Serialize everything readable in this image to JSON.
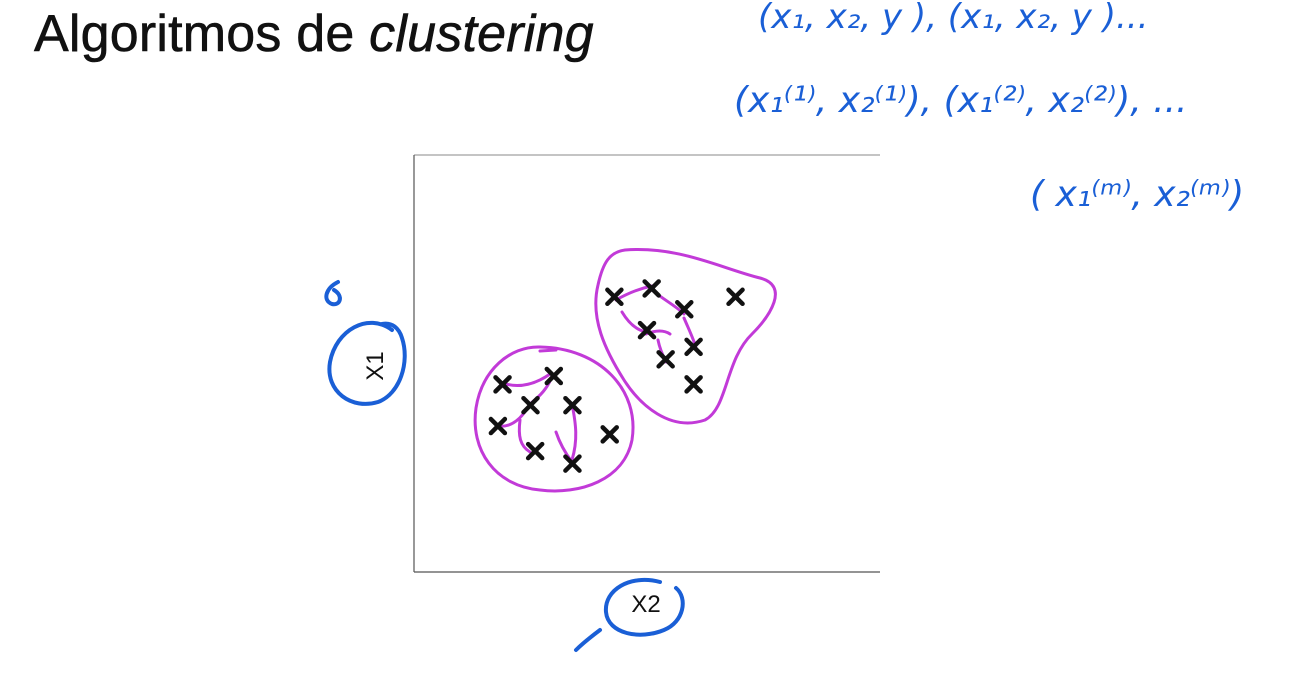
{
  "slide": {
    "title_main": "Algoritmos de ",
    "title_italic": "clustering"
  },
  "colors": {
    "ink_blue": "#1a5fd6",
    "ink_magenta": "#c23ad8",
    "marker": "#111111"
  },
  "annotations": {
    "line1": "(x₁, x₂, y ), (x₁, x₂, y )...",
    "line2": "(x₁⁽¹⁾, x₂⁽¹⁾), (x₁⁽²⁾, x₂⁽²⁾), ...",
    "line3": "( x₁⁽ᵐ⁾, x₂⁽ᵐ⁾)"
  },
  "chart_data": {
    "type": "scatter",
    "marker": "x",
    "xlabel": "X2",
    "ylabel": "X1",
    "xlim": [
      0,
      10
    ],
    "ylim": [
      0,
      10
    ],
    "grid": false,
    "series": [
      {
        "points": [
          [
            1.9,
            4.5
          ],
          [
            3.0,
            4.7
          ],
          [
            2.5,
            4.0
          ],
          [
            3.4,
            4.0
          ],
          [
            1.8,
            3.5
          ],
          [
            2.6,
            2.9
          ],
          [
            4.2,
            3.3
          ],
          [
            3.4,
            2.6
          ]
        ]
      },
      {
        "points": [
          [
            4.3,
            6.6
          ],
          [
            5.1,
            6.8
          ],
          [
            5.8,
            6.3
          ],
          [
            6.9,
            6.6
          ],
          [
            5.0,
            5.8
          ],
          [
            5.4,
            5.1
          ],
          [
            6.0,
            5.4
          ],
          [
            6.0,
            4.5
          ]
        ]
      }
    ]
  }
}
